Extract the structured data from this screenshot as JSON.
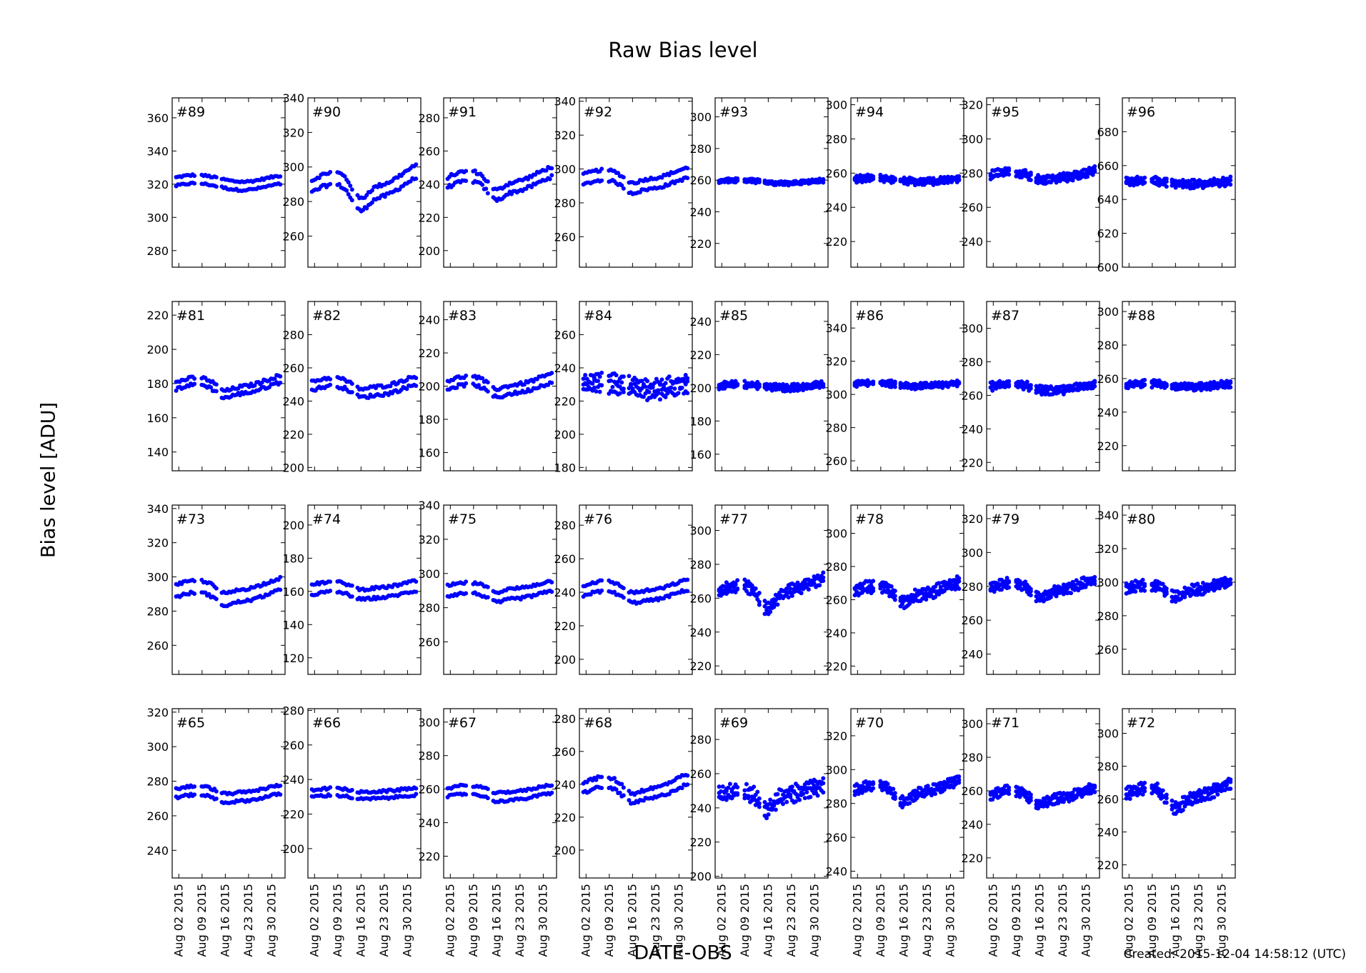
{
  "figure": {
    "title": "Raw Bias level",
    "ylabel": "Bias level [ADU]",
    "xlabel": "DATE-OBS",
    "created": "Created: 2015-12-04 14:58:12 (UTC)",
    "marker_color": "#0000ff"
  },
  "chart_data": [
    {
      "type": "scatter",
      "panel_label": "#89",
      "ylim": [
        270,
        372
      ],
      "yticks": [
        280,
        300,
        320,
        340,
        360
      ],
      "pattern": "two_band",
      "base": 321,
      "amp": 2,
      "sep": 5,
      "dip": 0,
      "noise": 0.6
    },
    {
      "type": "scatter",
      "panel_label": "#90",
      "ylim": [
        242,
        340
      ],
      "yticks": [
        260,
        280,
        300,
        320,
        340
      ],
      "pattern": "two_band",
      "base": 290,
      "amp": 5,
      "sep": 7,
      "dip": 10,
      "noise": 1.0
    },
    {
      "type": "scatter",
      "panel_label": "#91",
      "ylim": [
        190,
        292
      ],
      "yticks": [
        200,
        220,
        240,
        260,
        280
      ],
      "pattern": "two_band",
      "base": 242,
      "amp": 4,
      "sep": 6,
      "dip": 7,
      "noise": 1.0
    },
    {
      "type": "scatter",
      "panel_label": "#92",
      "ylim": [
        242,
        342
      ],
      "yticks": [
        260,
        280,
        300,
        320,
        340
      ],
      "pattern": "two_band",
      "base": 294,
      "amp": 3,
      "sep": 6,
      "dip": 4,
      "noise": 0.8
    },
    {
      "type": "scatter",
      "panel_label": "#93",
      "ylim": [
        205,
        312
      ],
      "yticks": [
        220,
        240,
        260,
        280,
        300
      ],
      "pattern": "dense",
      "base": 259,
      "amp": 1,
      "sep": 1.5,
      "dip": 0,
      "noise": 0.6
    },
    {
      "type": "scatter",
      "panel_label": "#94",
      "ylim": [
        205,
        304
      ],
      "yticks": [
        220,
        240,
        260,
        280,
        300
      ],
      "pattern": "dense",
      "base": 256,
      "amp": 1,
      "sep": 2.5,
      "dip": 0,
      "noise": 1.0
    },
    {
      "type": "scatter",
      "panel_label": "#95",
      "ylim": [
        225,
        324
      ],
      "yticks": [
        240,
        260,
        280,
        300,
        320
      ],
      "pattern": "dense",
      "base": 279,
      "amp": 2,
      "sep": 3,
      "dip": 2,
      "noise": 1.2
    },
    {
      "type": "scatter",
      "panel_label": "#96",
      "ylim": [
        600,
        700
      ],
      "yticks": [
        600,
        620,
        640,
        660,
        680
      ],
      "pattern": "dense",
      "base": 650,
      "amp": 1,
      "sep": 3,
      "dip": 0,
      "noise": 1.2
    },
    {
      "type": "scatter",
      "panel_label": "#81",
      "ylim": [
        129,
        228
      ],
      "yticks": [
        140,
        160,
        180,
        200,
        220
      ],
      "pattern": "two_band",
      "base": 179,
      "amp": 3,
      "sep": 4,
      "dip": 4,
      "noise": 1.0
    },
    {
      "type": "scatter",
      "panel_label": "#82",
      "ylim": [
        198,
        300
      ],
      "yticks": [
        200,
        220,
        240,
        260,
        280
      ],
      "pattern": "two_band",
      "base": 249,
      "amp": 3,
      "sep": 5,
      "dip": 3,
      "noise": 1.0
    },
    {
      "type": "scatter",
      "panel_label": "#83",
      "ylim": [
        149,
        251
      ],
      "yticks": [
        160,
        180,
        200,
        220,
        240
      ],
      "pattern": "two_band",
      "base": 201,
      "amp": 3,
      "sep": 5,
      "dip": 4,
      "noise": 1.0
    },
    {
      "type": "scatter",
      "panel_label": "#84",
      "ylim": [
        178,
        280
      ],
      "yticks": [
        180,
        200,
        220,
        240,
        260
      ],
      "pattern": "dense",
      "base": 229,
      "amp": 2,
      "sep": 8,
      "dip": 0,
      "noise": 2.5
    },
    {
      "type": "scatter",
      "panel_label": "#85",
      "ylim": [
        150,
        252
      ],
      "yticks": [
        160,
        180,
        200,
        220,
        240
      ],
      "pattern": "dense",
      "base": 201,
      "amp": 1,
      "sep": 2.5,
      "dip": 0,
      "noise": 1.0
    },
    {
      "type": "scatter",
      "panel_label": "#86",
      "ylim": [
        254,
        356
      ],
      "yticks": [
        260,
        280,
        300,
        320,
        340
      ],
      "pattern": "dense",
      "base": 306,
      "amp": 1,
      "sep": 2,
      "dip": 0,
      "noise": 1.0
    },
    {
      "type": "scatter",
      "panel_label": "#87",
      "ylim": [
        215,
        316
      ],
      "yticks": [
        220,
        240,
        260,
        280,
        300
      ],
      "pattern": "dense",
      "base": 265,
      "amp": 2,
      "sep": 3,
      "dip": 1,
      "noise": 1.2
    },
    {
      "type": "scatter",
      "panel_label": "#88",
      "ylim": [
        205,
        306
      ],
      "yticks": [
        220,
        240,
        260,
        280,
        300
      ],
      "pattern": "dense",
      "base": 256,
      "amp": 1,
      "sep": 2.5,
      "dip": 0,
      "noise": 1.0
    },
    {
      "type": "scatter",
      "panel_label": "#73",
      "ylim": [
        243,
        342
      ],
      "yticks": [
        260,
        280,
        300,
        320,
        340
      ],
      "pattern": "two_band",
      "base": 292,
      "amp": 3,
      "sep": 7,
      "dip": 4,
      "noise": 0.8
    },
    {
      "type": "scatter",
      "panel_label": "#74",
      "ylim": [
        110,
        212
      ],
      "yticks": [
        120,
        140,
        160,
        180,
        200
      ],
      "pattern": "two_band",
      "base": 161,
      "amp": 2,
      "sep": 6,
      "dip": 2,
      "noise": 0.8
    },
    {
      "type": "scatter",
      "panel_label": "#75",
      "ylim": [
        241,
        340
      ],
      "yticks": [
        260,
        280,
        300,
        320,
        340
      ],
      "pattern": "two_band",
      "base": 290,
      "amp": 2,
      "sep": 6,
      "dip": 3,
      "noise": 0.8
    },
    {
      "type": "scatter",
      "panel_label": "#76",
      "ylim": [
        191,
        292
      ],
      "yticks": [
        200,
        220,
        240,
        260,
        280
      ],
      "pattern": "two_band",
      "base": 241,
      "amp": 3,
      "sep": 6,
      "dip": 3,
      "noise": 0.8
    },
    {
      "type": "scatter",
      "panel_label": "#77",
      "ylim": [
        215,
        315
      ],
      "yticks": [
        220,
        240,
        260,
        280,
        300
      ],
      "pattern": "dense",
      "base": 266,
      "amp": 3,
      "sep": 5,
      "dip": 11,
      "noise": 1.5
    },
    {
      "type": "scatter",
      "panel_label": "#78",
      "ylim": [
        215,
        317
      ],
      "yticks": [
        220,
        240,
        260,
        280,
        300
      ],
      "pattern": "dense",
      "base": 266,
      "amp": 3,
      "sep": 5,
      "dip": 6,
      "noise": 1.5
    },
    {
      "type": "scatter",
      "panel_label": "#79",
      "ylim": [
        228,
        328
      ],
      "yticks": [
        240,
        260,
        280,
        300,
        320
      ],
      "pattern": "dense",
      "base": 280,
      "amp": 3,
      "sep": 4,
      "dip": 6,
      "noise": 1.3
    },
    {
      "type": "scatter",
      "panel_label": "#80",
      "ylim": [
        245,
        346
      ],
      "yticks": [
        260,
        280,
        300,
        320,
        340
      ],
      "pattern": "dense",
      "base": 297,
      "amp": 2,
      "sep": 4,
      "dip": 5,
      "noise": 1.5
    },
    {
      "type": "scatter",
      "panel_label": "#65",
      "ylim": [
        224,
        322
      ],
      "yticks": [
        240,
        260,
        280,
        300,
        320
      ],
      "pattern": "two_band",
      "base": 273,
      "amp": 2,
      "sep": 5,
      "dip": 2,
      "noise": 0.7
    },
    {
      "type": "scatter",
      "panel_label": "#66",
      "ylim": [
        183,
        281
      ],
      "yticks": [
        200,
        220,
        240,
        260,
        280
      ],
      "pattern": "two_band",
      "base": 232,
      "amp": 1,
      "sep": 4,
      "dip": 1,
      "noise": 0.7
    },
    {
      "type": "scatter",
      "panel_label": "#67",
      "ylim": [
        207,
        308
      ],
      "yticks": [
        220,
        240,
        260,
        280,
        300
      ],
      "pattern": "two_band",
      "base": 258,
      "amp": 2,
      "sep": 5,
      "dip": 2,
      "noise": 0.7
    },
    {
      "type": "scatter",
      "panel_label": "#68",
      "ylim": [
        183,
        286
      ],
      "yticks": [
        200,
        220,
        240,
        260,
        280
      ],
      "pattern": "two_band",
      "base": 238,
      "amp": 4,
      "sep": 6,
      "dip": 5,
      "noise": 1.0
    },
    {
      "type": "scatter",
      "panel_label": "#69",
      "ylim": [
        199,
        298
      ],
      "yticks": [
        200,
        220,
        240,
        260,
        280
      ],
      "pattern": "dense",
      "base": 249,
      "amp": 2,
      "sep": 6,
      "dip": 9,
      "noise": 2.5
    },
    {
      "type": "scatter",
      "panel_label": "#70",
      "ylim": [
        236,
        336
      ],
      "yticks": [
        240,
        260,
        280,
        300,
        320
      ],
      "pattern": "dense",
      "base": 289,
      "amp": 3,
      "sep": 4,
      "dip": 7,
      "noise": 1.3
    },
    {
      "type": "scatter",
      "panel_label": "#71",
      "ylim": [
        208,
        309
      ],
      "yticks": [
        220,
        240,
        260,
        280,
        300
      ],
      "pattern": "dense",
      "base": 258,
      "amp": 3,
      "sep": 4,
      "dip": 5,
      "noise": 1.2
    },
    {
      "type": "scatter",
      "panel_label": "#72",
      "ylim": [
        212,
        315
      ],
      "yticks": [
        220,
        240,
        260,
        280,
        300
      ],
      "pattern": "dense",
      "base": 264,
      "amp": 4,
      "sep": 5,
      "dip": 8,
      "noise": 1.6
    }
  ],
  "x_axis": {
    "range": [
      "2015-07-31",
      "2015-09-03"
    ],
    "ticks": [
      "2015-08-02",
      "2015-08-09",
      "2015-08-16",
      "2015-08-23",
      "2015-08-30"
    ],
    "tick_labels": [
      "Aug 02 2015",
      "Aug 09 2015",
      "Aug 16 2015",
      "Aug 23 2015",
      "Aug 30 2015"
    ],
    "grid": false
  }
}
